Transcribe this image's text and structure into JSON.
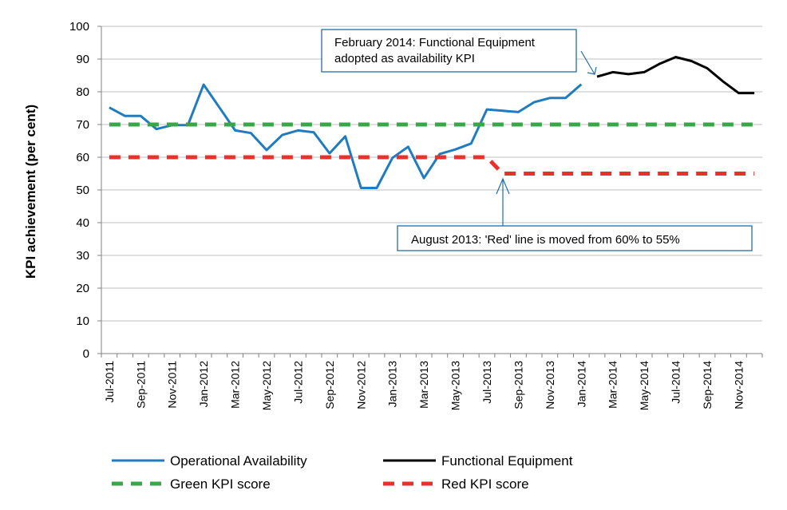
{
  "chart_data": {
    "type": "line",
    "ylabel": "KPI achievement (per cent)",
    "ylim": [
      0,
      100
    ],
    "y_ticks": [
      0,
      10,
      20,
      30,
      40,
      50,
      60,
      70,
      80,
      90,
      100
    ],
    "grid": "horizontal",
    "legend_position": "bottom",
    "categories": [
      "Jul-2011",
      "Aug-2011",
      "Sep-2011",
      "Oct-2011",
      "Nov-2011",
      "Dec-2011",
      "Jan-2012",
      "Feb-2012",
      "Mar-2012",
      "Apr-2012",
      "May-2012",
      "Jun-2012",
      "Jul-2012",
      "Aug-2012",
      "Sep-2012",
      "Oct-2012",
      "Nov-2012",
      "Dec-2012",
      "Jan-2013",
      "Feb-2013",
      "Mar-2013",
      "Apr-2013",
      "May-2013",
      "Jun-2013",
      "Jul-2013",
      "Aug-2013",
      "Sep-2013",
      "Oct-2013",
      "Nov-2013",
      "Dec-2013",
      "Jan-2014",
      "Feb-2014",
      "Mar-2014",
      "Apr-2014",
      "May-2014",
      "Jun-2014",
      "Jul-2014",
      "Aug-2014",
      "Sep-2014",
      "Oct-2014",
      "Nov-2014",
      "Dec-2014"
    ],
    "tick_labels": [
      "Jul-2011",
      "Sep-2011",
      "Nov-2011",
      "Jan-2012",
      "Mar-2012",
      "May-2012",
      "Jul-2012",
      "Sep-2012",
      "Nov-2012",
      "Jan-2013",
      "Mar-2013",
      "May-2013",
      "Jul-2013",
      "Sep-2013",
      "Nov-2013",
      "Jan-2014",
      "Mar-2014",
      "May-2014",
      "Jul-2014",
      "Sep-2014",
      "Nov-2014"
    ],
    "series": [
      {
        "name": "Operational Availability",
        "color": "#1f7cc0",
        "style": "solid",
        "values": [
          75.2,
          72.6,
          72.6,
          68.6,
          69.8,
          69.8,
          82.2,
          75.2,
          68.2,
          67.4,
          62.2,
          66.8,
          68.2,
          67.6,
          61.2,
          66.4,
          50.6,
          50.6,
          59.8,
          63.2,
          53.6,
          61.0,
          62.4,
          64.2,
          74.6,
          74.2,
          73.8,
          76.8,
          78.1,
          78.1,
          82.3,
          null,
          null,
          null,
          null,
          null,
          null,
          null,
          null,
          null,
          null,
          null
        ]
      },
      {
        "name": "Functional Equipment",
        "color": "#000000",
        "style": "solid",
        "values": [
          null,
          null,
          null,
          null,
          null,
          null,
          null,
          null,
          null,
          null,
          null,
          null,
          null,
          null,
          null,
          null,
          null,
          null,
          null,
          null,
          null,
          null,
          null,
          null,
          null,
          null,
          null,
          null,
          null,
          null,
          null,
          84.6,
          86.0,
          85.4,
          86.0,
          88.6,
          90.6,
          89.4,
          87.2,
          83.2,
          79.6,
          79.6
        ]
      },
      {
        "name": "Green KPI score",
        "color": "#3aa64a",
        "style": "dashed",
        "values": [
          70,
          70,
          70,
          70,
          70,
          70,
          70,
          70,
          70,
          70,
          70,
          70,
          70,
          70,
          70,
          70,
          70,
          70,
          70,
          70,
          70,
          70,
          70,
          70,
          70,
          70,
          70,
          70,
          70,
          70,
          70,
          70,
          70,
          70,
          70,
          70,
          70,
          70,
          70,
          70,
          70,
          70
        ]
      },
      {
        "name": "Red KPI score",
        "color": "#e8312b",
        "style": "dashed",
        "values": [
          60,
          60,
          60,
          60,
          60,
          60,
          60,
          60,
          60,
          60,
          60,
          60,
          60,
          60,
          60,
          60,
          60,
          60,
          60,
          60,
          60,
          60,
          60,
          60,
          60,
          55,
          55,
          55,
          55,
          55,
          55,
          55,
          55,
          55,
          55,
          55,
          55,
          55,
          55,
          55,
          55,
          55
        ]
      }
    ],
    "annotations": [
      {
        "lines": [
          "February 2014: Functional Equipment",
          "adopted as availability KPI"
        ]
      },
      {
        "lines": [
          "August 2013: 'Red' line is moved from 60% to 55%"
        ]
      }
    ]
  }
}
